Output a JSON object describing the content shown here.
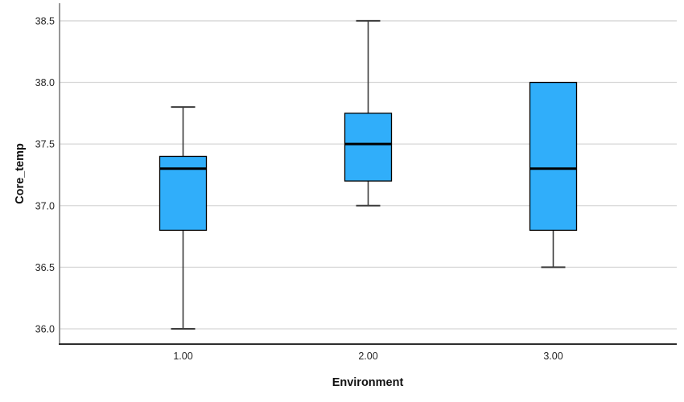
{
  "chart_data": {
    "type": "boxplot",
    "title": "",
    "xlabel": "Environment",
    "ylabel": "Core_temp",
    "categories": [
      "1.00",
      "2.00",
      "3.00"
    ],
    "y_ticks": [
      36.0,
      36.5,
      37.0,
      37.5,
      38.0,
      38.5
    ],
    "y_tick_labels": [
      "36.0",
      "36.5",
      "37.0",
      "37.5",
      "38.0",
      "38.5"
    ],
    "ylim": [
      35.876,
      38.643
    ],
    "grid": true,
    "legend": "none",
    "series": [
      {
        "category": "1.00",
        "whisker_low": 36.0,
        "q1": 36.8,
        "median": 37.3,
        "q3": 37.4,
        "whisker_high": 37.8
      },
      {
        "category": "2.00",
        "whisker_low": 37.0,
        "q1": 37.2,
        "median": 37.5,
        "q3": 37.75,
        "whisker_high": 38.5
      },
      {
        "category": "3.00",
        "whisker_low": 36.5,
        "q1": 36.8,
        "median": 37.3,
        "q3": 38.0,
        "whisker_high": 38.0
      }
    ],
    "colors": {
      "box_fill": "#30aefa",
      "box_border": "#000000",
      "median_line": "#000000",
      "whisker": "#3b3b3b",
      "gridline": "#d7d7d7",
      "y_axis_line": "#7d7d7d",
      "x_axis_line": "#2e2e2e",
      "tick_label": "#262626",
      "background": "#ffffff"
    }
  }
}
